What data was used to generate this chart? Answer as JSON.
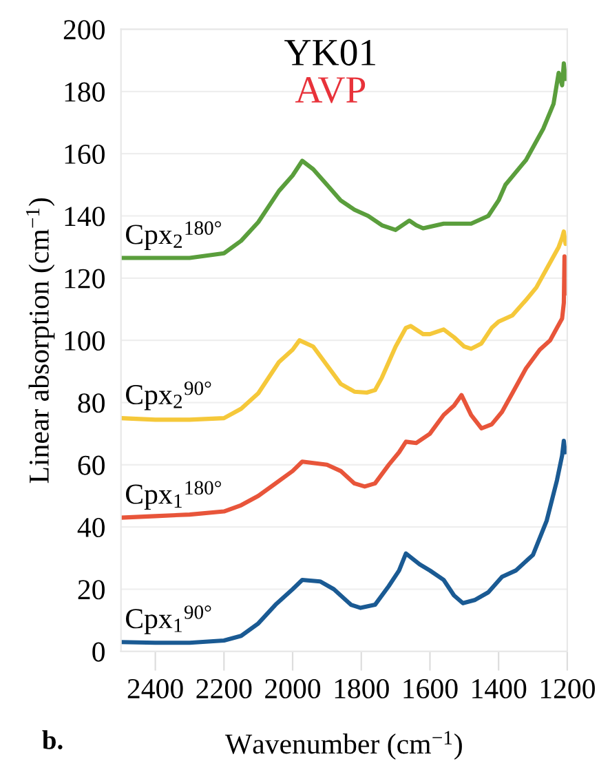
{
  "chart_data": {
    "type": "line",
    "title": "YK01",
    "subtitle": "AVP",
    "xlabel": "Wavenumber (cm$^{−1}$)",
    "ylabel": "Linear absorption (cm$^{−1}$)",
    "xlim": [
      2500,
      1200
    ],
    "xticks": [
      2400,
      2200,
      2000,
      1800,
      1600,
      1400,
      1200
    ],
    "ylim": [
      0,
      200
    ],
    "yticks": [
      0,
      20,
      40,
      60,
      80,
      100,
      120,
      140,
      160,
      180,
      200
    ],
    "grid": "y",
    "marker": "none",
    "line_style": "solid",
    "series": [
      {
        "color": "#1a5a93",
        "x": [
          2500,
          2400,
          2300,
          2200,
          2150,
          2100,
          2050,
          2000,
          1972,
          1920,
          1880,
          1830,
          1802,
          1760,
          1720,
          1690,
          1670,
          1630,
          1600,
          1560,
          1530,
          1504,
          1470,
          1430,
          1390,
          1350,
          1300,
          1260,
          1230,
          1215,
          1210,
          1206
        ],
        "values": [
          3,
          2.8,
          2.8,
          3.5,
          5,
          9,
          15,
          20,
          23,
          22.5,
          20,
          15,
          14,
          15,
          21,
          26,
          31.5,
          28,
          26,
          23,
          18,
          15.5,
          16.5,
          19,
          24,
          26,
          31,
          42,
          55,
          63,
          67.7,
          64
        ]
      },
      {
        "color": "#e8553a",
        "x": [
          2500,
          2400,
          2300,
          2200,
          2150,
          2100,
          2050,
          2000,
          1972,
          1900,
          1860,
          1820,
          1790,
          1760,
          1720,
          1690,
          1670,
          1640,
          1600,
          1560,
          1530,
          1508,
          1480,
          1450,
          1420,
          1390,
          1360,
          1320,
          1280,
          1250,
          1230,
          1215,
          1210,
          1208,
          1205
        ],
        "values": [
          43,
          43.5,
          44,
          45,
          47,
          50,
          54,
          58,
          61,
          60,
          58,
          54,
          53,
          54,
          60,
          64,
          67.4,
          67,
          70,
          76,
          79,
          82.4,
          76,
          71.7,
          73,
          77,
          83,
          91,
          97,
          100,
          104,
          107,
          112,
          127,
          115
        ]
      },
      {
        "color": "#f5c83a",
        "x": [
          2500,
          2400,
          2300,
          2200,
          2150,
          2100,
          2040,
          2000,
          1980,
          1940,
          1900,
          1860,
          1820,
          1784,
          1760,
          1740,
          1700,
          1670,
          1656,
          1620,
          1600,
          1560,
          1530,
          1500,
          1480,
          1450,
          1420,
          1400,
          1360,
          1320,
          1290,
          1260,
          1240,
          1225,
          1215,
          1210,
          1205
        ],
        "values": [
          75,
          74.5,
          74.5,
          75,
          78,
          83,
          93,
          97,
          100,
          98,
          92,
          86,
          83.5,
          83.2,
          84,
          88,
          98,
          104,
          104.6,
          102,
          102,
          103.5,
          101,
          98,
          97.3,
          99,
          104,
          106,
          108,
          113,
          117,
          123,
          127,
          130,
          133,
          135,
          131
        ]
      },
      {
        "color": "#5a9e3c",
        "x": [
          2500,
          2400,
          2300,
          2200,
          2150,
          2100,
          2040,
          2000,
          1972,
          1940,
          1900,
          1860,
          1820,
          1780,
          1740,
          1700,
          1680,
          1660,
          1640,
          1620,
          1560,
          1480,
          1430,
          1400,
          1380,
          1320,
          1270,
          1240,
          1225,
          1215,
          1210,
          1205
        ],
        "values": [
          126.5,
          126.5,
          126.5,
          128,
          132,
          138,
          148,
          153,
          157.7,
          155,
          150,
          145,
          142,
          140,
          137,
          135.5,
          137,
          138.5,
          137,
          136,
          137.5,
          137.5,
          140,
          145,
          150,
          158,
          168,
          176,
          186,
          182,
          189,
          184
        ]
      }
    ],
    "annotations": [
      "Cpx$_{1}$$^{90°}$",
      "Cpx$_{1}$$^{180°}$",
      "Cpx$_{2}$$^{90°}$",
      "Cpx$_{2}$$^{180°}$",
      "b."
    ]
  }
}
